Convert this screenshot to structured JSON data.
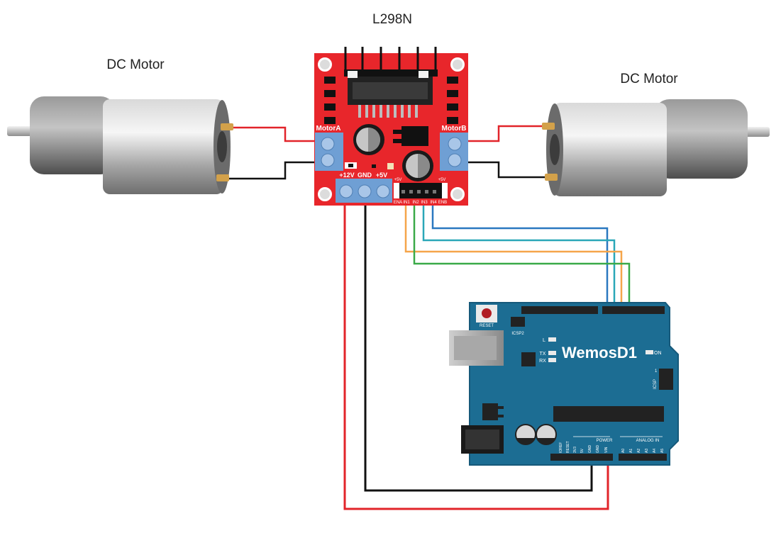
{
  "title": "L298N",
  "motor_left": {
    "label": "DC Motor"
  },
  "motor_right": {
    "label": "DC Motor"
  },
  "l298n": {
    "motor_a": "MotorA",
    "motor_b": "MotorB",
    "pwr_12v": "+12V",
    "pwr_gnd": "GND",
    "pwr_5v": "+5V",
    "hdr_5v_left": "+5V",
    "hdr_5v_right": "+5V",
    "pins": [
      "ENA",
      "IN1",
      "IN2",
      "IN3",
      "IN4",
      "ENB"
    ]
  },
  "board": {
    "name": "WemosD1",
    "reset": "RESET",
    "icsp2": "ICSP2",
    "icsp": "ICSP",
    "icsp_one": "1",
    "led_l": "L",
    "led_tx": "TX",
    "led_rx": "RX",
    "on": "ON",
    "power_section": "POWER",
    "analog_section": "ANALOG IN",
    "power_pins": [
      "IOREF",
      "RESET",
      "3V3",
      "5V",
      "GND",
      "GND",
      "VIN"
    ],
    "analog_pins": [
      "A0",
      "A1",
      "A2",
      "A3",
      "A4",
      "A5"
    ]
  },
  "colors": {
    "board_red": "#e8262b",
    "board_blue": "#1c6d93",
    "terminal_blue": "#6f9fd4",
    "wire_red": "#e2242a",
    "wire_black": "#111111",
    "wire_blue": "#2a78c0",
    "wire_orange": "#f5a54a",
    "wire_teal": "#2aa7b8",
    "wire_green": "#3aaa48"
  },
  "icons": [
    "motor-icon",
    "heatsink-icon",
    "capacitor-icon",
    "screw-terminal-icon",
    "usb-port-icon",
    "power-jack-icon"
  ]
}
